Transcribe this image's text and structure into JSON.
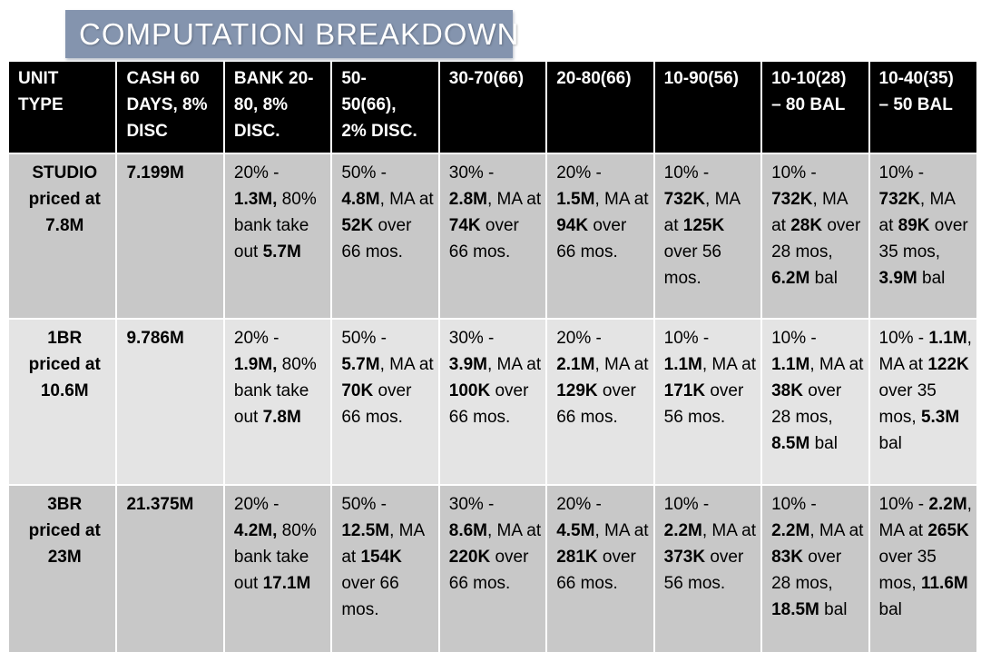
{
  "title": "COMPUTATION BREAKDOWN",
  "colors": {
    "title_bg": "#8494AE",
    "header_bg": "#000000",
    "header_text": "#FFFFFF",
    "row_dark": "#C8C8C8",
    "row_light": "#E4E4E4",
    "grid": "#FFFFFF",
    "body_text": "#000000"
  },
  "table": {
    "headers": [
      "UNIT\nTYPE",
      "CASH 60\nDAYS, 8%\nDISC",
      "BANK 20-\n80, 8%\nDISC.",
      "50-\n50(66),\n2% DISC.",
      "30-70(66)",
      "20-80(66)",
      "10-90(56)",
      "10-10(28)\n– 80 BAL",
      "10-40(35)\n– 50 BAL"
    ],
    "rows": [
      {
        "unit": "STUDIO\npriced at\n7.8M",
        "cash": "7.199M",
        "plans": [
          [
            {
              "t": "20% - "
            },
            {
              "t": "1.3M,",
              "b": true
            },
            {
              "t": " 80% bank take out "
            },
            {
              "t": "5.7M",
              "b": true
            }
          ],
          [
            {
              "t": "50% - "
            },
            {
              "t": "4.8M",
              "b": true
            },
            {
              "t": ", MA at "
            },
            {
              "t": "52K",
              "b": true
            },
            {
              "t": " over 66 mos."
            }
          ],
          [
            {
              "t": "30% - "
            },
            {
              "t": "2.8M",
              "b": true
            },
            {
              "t": ", MA at "
            },
            {
              "t": "74K",
              "b": true
            },
            {
              "t": " over 66 mos."
            }
          ],
          [
            {
              "t": "20% - "
            },
            {
              "t": "1.5M",
              "b": true
            },
            {
              "t": ", MA at "
            },
            {
              "t": "94K",
              "b": true
            },
            {
              "t": " over 66 mos."
            }
          ],
          [
            {
              "t": "10% - "
            },
            {
              "t": "732K",
              "b": true
            },
            {
              "t": ", MA at "
            },
            {
              "t": "125K",
              "b": true
            },
            {
              "t": " over 56 mos."
            }
          ],
          [
            {
              "t": "10% - "
            },
            {
              "t": "732K",
              "b": true
            },
            {
              "t": ", MA at "
            },
            {
              "t": "28K",
              "b": true
            },
            {
              "t": " over 28 mos, "
            },
            {
              "t": "6.2M",
              "b": true
            },
            {
              "t": " bal"
            }
          ],
          [
            {
              "t": "10% - "
            },
            {
              "t": "732K",
              "b": true
            },
            {
              "t": ", MA at "
            },
            {
              "t": "89K",
              "b": true
            },
            {
              "t": " over 35 mos, "
            },
            {
              "t": "3.9M",
              "b": true
            },
            {
              "t": " bal"
            }
          ]
        ]
      },
      {
        "unit": "1BR\npriced at\n10.6M",
        "cash": "9.786M",
        "plans": [
          [
            {
              "t": "20% - "
            },
            {
              "t": "1.9M,",
              "b": true
            },
            {
              "t": " 80% bank take out "
            },
            {
              "t": "7.8M",
              "b": true
            }
          ],
          [
            {
              "t": "50% - "
            },
            {
              "t": "5.7M",
              "b": true
            },
            {
              "t": ", MA at "
            },
            {
              "t": "70K",
              "b": true
            },
            {
              "t": " over 66 mos."
            }
          ],
          [
            {
              "t": "30% - "
            },
            {
              "t": "3.9M",
              "b": true
            },
            {
              "t": ", MA at "
            },
            {
              "t": "100K",
              "b": true
            },
            {
              "t": " over 66 mos."
            }
          ],
          [
            {
              "t": "20% - "
            },
            {
              "t": "2.1M",
              "b": true
            },
            {
              "t": ", MA at "
            },
            {
              "t": "129K",
              "b": true
            },
            {
              "t": " over 66 mos."
            }
          ],
          [
            {
              "t": "10% - "
            },
            {
              "t": "1.1M",
              "b": true
            },
            {
              "t": ", MA at "
            },
            {
              "t": "171K",
              "b": true
            },
            {
              "t": " over 56 mos."
            }
          ],
          [
            {
              "t": "10% - "
            },
            {
              "t": "1.1M",
              "b": true
            },
            {
              "t": ", MA at "
            },
            {
              "t": "38K",
              "b": true
            },
            {
              "t": " over 28 mos, "
            },
            {
              "t": "8.5M",
              "b": true
            },
            {
              "t": " bal"
            }
          ],
          [
            {
              "t": "10% - "
            },
            {
              "t": "1.1M",
              "b": true
            },
            {
              "t": ", MA at "
            },
            {
              "t": "122K",
              "b": true
            },
            {
              "t": " over 35 mos, "
            },
            {
              "t": "5.3M",
              "b": true
            },
            {
              "t": " bal"
            }
          ]
        ]
      },
      {
        "unit": "3BR\npriced at\n23M",
        "cash": "21.375M",
        "plans": [
          [
            {
              "t": "20% - "
            },
            {
              "t": "4.2M,",
              "b": true
            },
            {
              "t": " 80% bank take out "
            },
            {
              "t": "17.1M",
              "b": true
            }
          ],
          [
            {
              "t": "50% - "
            },
            {
              "t": "12.5M",
              "b": true
            },
            {
              "t": ", MA at "
            },
            {
              "t": "154K",
              "b": true
            },
            {
              "t": " over 66 mos."
            }
          ],
          [
            {
              "t": "30% - "
            },
            {
              "t": "8.6M",
              "b": true
            },
            {
              "t": ", MA at "
            },
            {
              "t": "220K",
              "b": true
            },
            {
              "t": " over 66 mos."
            }
          ],
          [
            {
              "t": "20% - "
            },
            {
              "t": "4.5M",
              "b": true
            },
            {
              "t": ", MA at "
            },
            {
              "t": "281K",
              "b": true
            },
            {
              "t": " over 66 mos."
            }
          ],
          [
            {
              "t": "10% - "
            },
            {
              "t": "2.2M",
              "b": true
            },
            {
              "t": ", MA at "
            },
            {
              "t": "373K",
              "b": true
            },
            {
              "t": " over 56 mos."
            }
          ],
          [
            {
              "t": "10% - "
            },
            {
              "t": "2.2M",
              "b": true
            },
            {
              "t": ", MA at "
            },
            {
              "t": "83K",
              "b": true
            },
            {
              "t": " over 28 mos, "
            },
            {
              "t": "18.5M",
              "b": true
            },
            {
              "t": " bal"
            }
          ],
          [
            {
              "t": "10% - "
            },
            {
              "t": "2.2M",
              "b": true
            },
            {
              "t": ", MA at "
            },
            {
              "t": "265K",
              "b": true
            },
            {
              "t": " over 35 mos, "
            },
            {
              "t": "11.6M",
              "b": true
            },
            {
              "t": " bal"
            }
          ]
        ]
      }
    ]
  }
}
